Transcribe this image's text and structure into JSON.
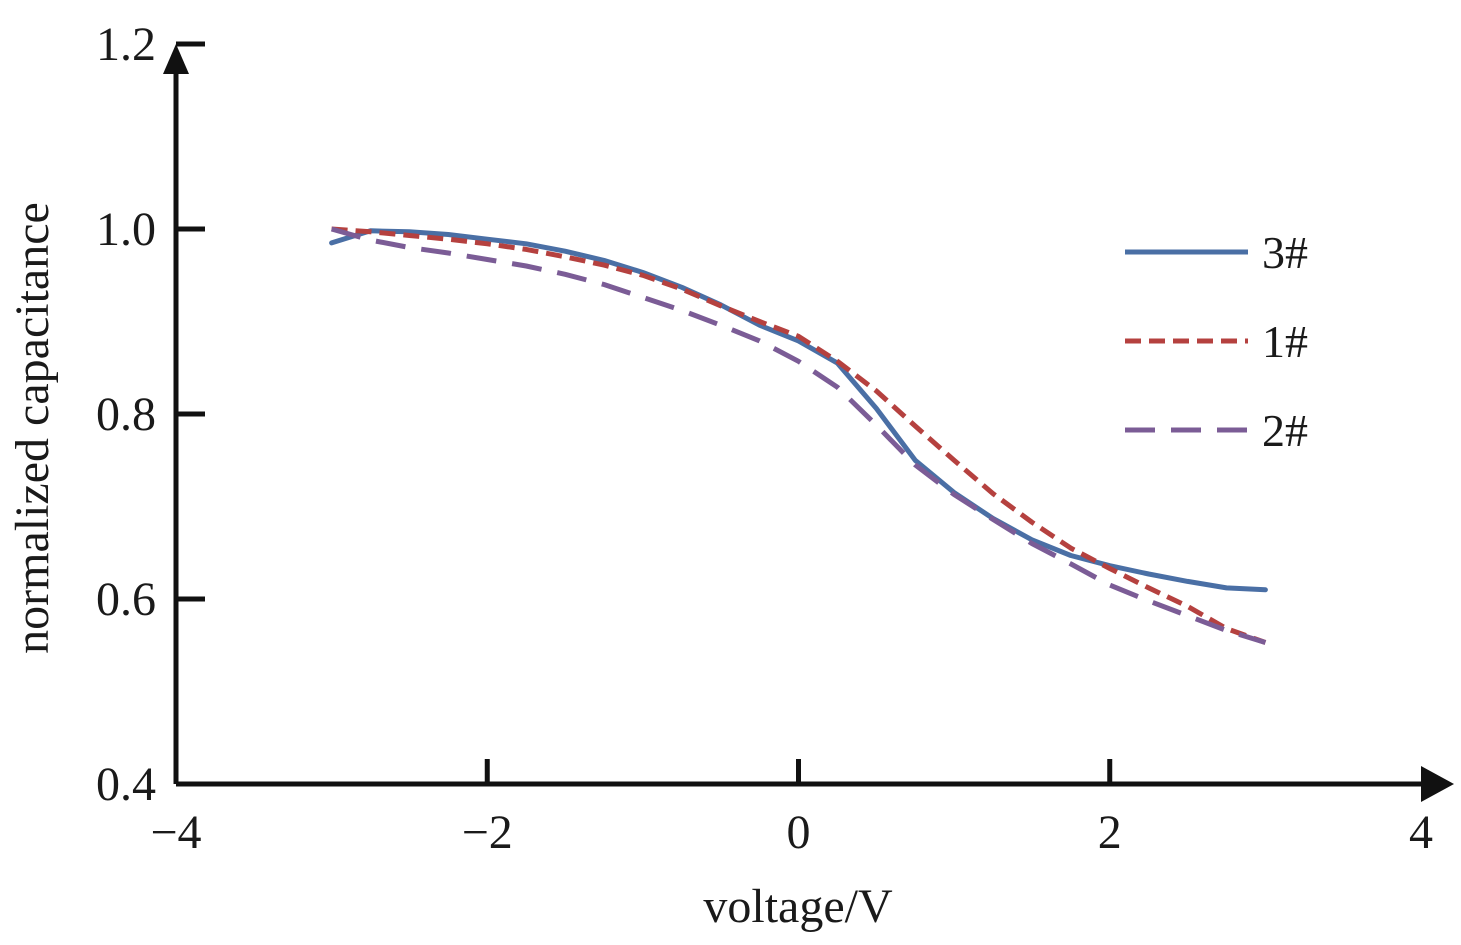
{
  "chart_data": {
    "type": "line",
    "title": "",
    "xlabel": "voltage/V",
    "ylabel": "normalized capacitance",
    "xlim": [
      -4,
      4
    ],
    "ylim": [
      0.4,
      1.2
    ],
    "x_ticks": [
      -4,
      -2,
      0,
      2,
      4
    ],
    "x_tick_labels": [
      "−4",
      "−2",
      "0",
      "2",
      "4"
    ],
    "y_ticks": [
      0.4,
      0.6,
      0.8,
      1.0,
      1.2
    ],
    "y_tick_labels": [
      "0.4",
      "0.6",
      "0.8",
      "1.0",
      "1.2"
    ],
    "grid": false,
    "legend_position": "right",
    "series": [
      {
        "name": "3#",
        "color": "#4a6fa5",
        "dash": "solid",
        "x": [
          -3.0,
          -2.75,
          -2.5,
          -2.25,
          -2.0,
          -1.75,
          -1.5,
          -1.25,
          -1.0,
          -0.75,
          -0.5,
          -0.25,
          0.0,
          0.25,
          0.5,
          0.75,
          1.0,
          1.25,
          1.5,
          1.75,
          2.0,
          2.25,
          2.5,
          2.75,
          3.0
        ],
        "y": [
          0.985,
          0.998,
          0.997,
          0.994,
          0.989,
          0.984,
          0.976,
          0.966,
          0.953,
          0.937,
          0.918,
          0.896,
          0.879,
          0.855,
          0.806,
          0.75,
          0.715,
          0.687,
          0.664,
          0.647,
          0.636,
          0.627,
          0.619,
          0.612,
          0.61
        ]
      },
      {
        "name": "1#",
        "color": "#b5413f",
        "dash": "short-dash",
        "x": [
          -3.0,
          -2.75,
          -2.5,
          -2.25,
          -2.0,
          -1.75,
          -1.5,
          -1.25,
          -1.0,
          -0.75,
          -0.5,
          -0.25,
          0.0,
          0.25,
          0.5,
          0.75,
          1.0,
          1.25,
          1.5,
          1.75,
          2.0,
          2.25,
          2.5,
          2.75,
          3.0
        ],
        "y": [
          1.0,
          0.997,
          0.993,
          0.989,
          0.984,
          0.978,
          0.97,
          0.961,
          0.95,
          0.935,
          0.917,
          0.9,
          0.884,
          0.857,
          0.825,
          0.787,
          0.75,
          0.714,
          0.683,
          0.655,
          0.633,
          0.612,
          0.592,
          0.568,
          0.553
        ]
      },
      {
        "name": "2#",
        "color": "#7b5c96",
        "dash": "long-dash",
        "x": [
          -3.0,
          -2.75,
          -2.5,
          -2.25,
          -2.0,
          -1.75,
          -1.5,
          -1.25,
          -1.0,
          -0.75,
          -0.5,
          -0.25,
          0.0,
          0.25,
          0.5,
          0.75,
          1.0,
          1.25,
          1.5,
          1.75,
          2.0,
          2.25,
          2.5,
          2.75,
          3.0
        ],
        "y": [
          1.0,
          0.988,
          0.98,
          0.974,
          0.967,
          0.96,
          0.951,
          0.94,
          0.926,
          0.912,
          0.896,
          0.879,
          0.857,
          0.829,
          0.788,
          0.745,
          0.713,
          0.686,
          0.66,
          0.638,
          0.615,
          0.598,
          0.582,
          0.566,
          0.553
        ]
      }
    ]
  }
}
